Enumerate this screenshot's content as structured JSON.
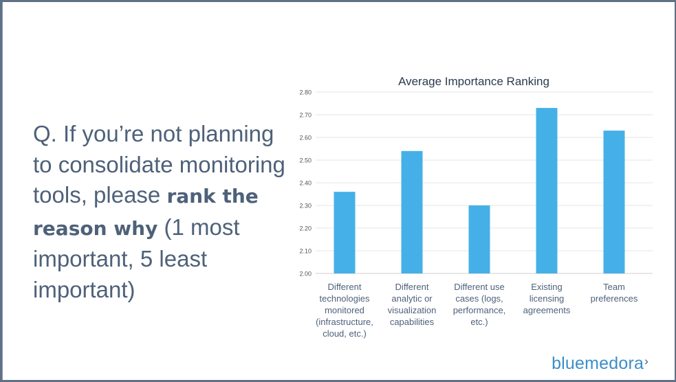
{
  "question": {
    "prefix": "Q. If you’re not planning to consolidate monitoring tools, please ",
    "bold": "rank the reason why",
    "suffix": " (1 most important, 5 least important)"
  },
  "brand": {
    "part1": "blue",
    "part2": "medora",
    "mark": "›"
  },
  "colors": {
    "bar": "#45b0e8",
    "text": "#4e6179",
    "frame": "#5f7087"
  },
  "chart_data": {
    "type": "bar",
    "title": "Average Importance Ranking",
    "categories": [
      [
        "Different",
        "technologies",
        "monitored",
        "(infrastructure,",
        "cloud, etc.)"
      ],
      [
        "Different",
        "analytic or",
        "visualization",
        "capabilities"
      ],
      [
        "Different use",
        "cases (logs,",
        "performance,",
        "etc.)"
      ],
      [
        "Existing",
        "licensing",
        "agreements"
      ],
      [
        "Team",
        "preferences"
      ]
    ],
    "values": [
      2.36,
      2.54,
      2.3,
      2.73,
      2.63
    ],
    "ylim": [
      2.0,
      2.8
    ],
    "yticks": [
      "2.00",
      "2.10",
      "2.20",
      "2.30",
      "2.40",
      "2.50",
      "2.60",
      "2.70",
      "2.80"
    ],
    "grid": true,
    "legend": "none"
  }
}
